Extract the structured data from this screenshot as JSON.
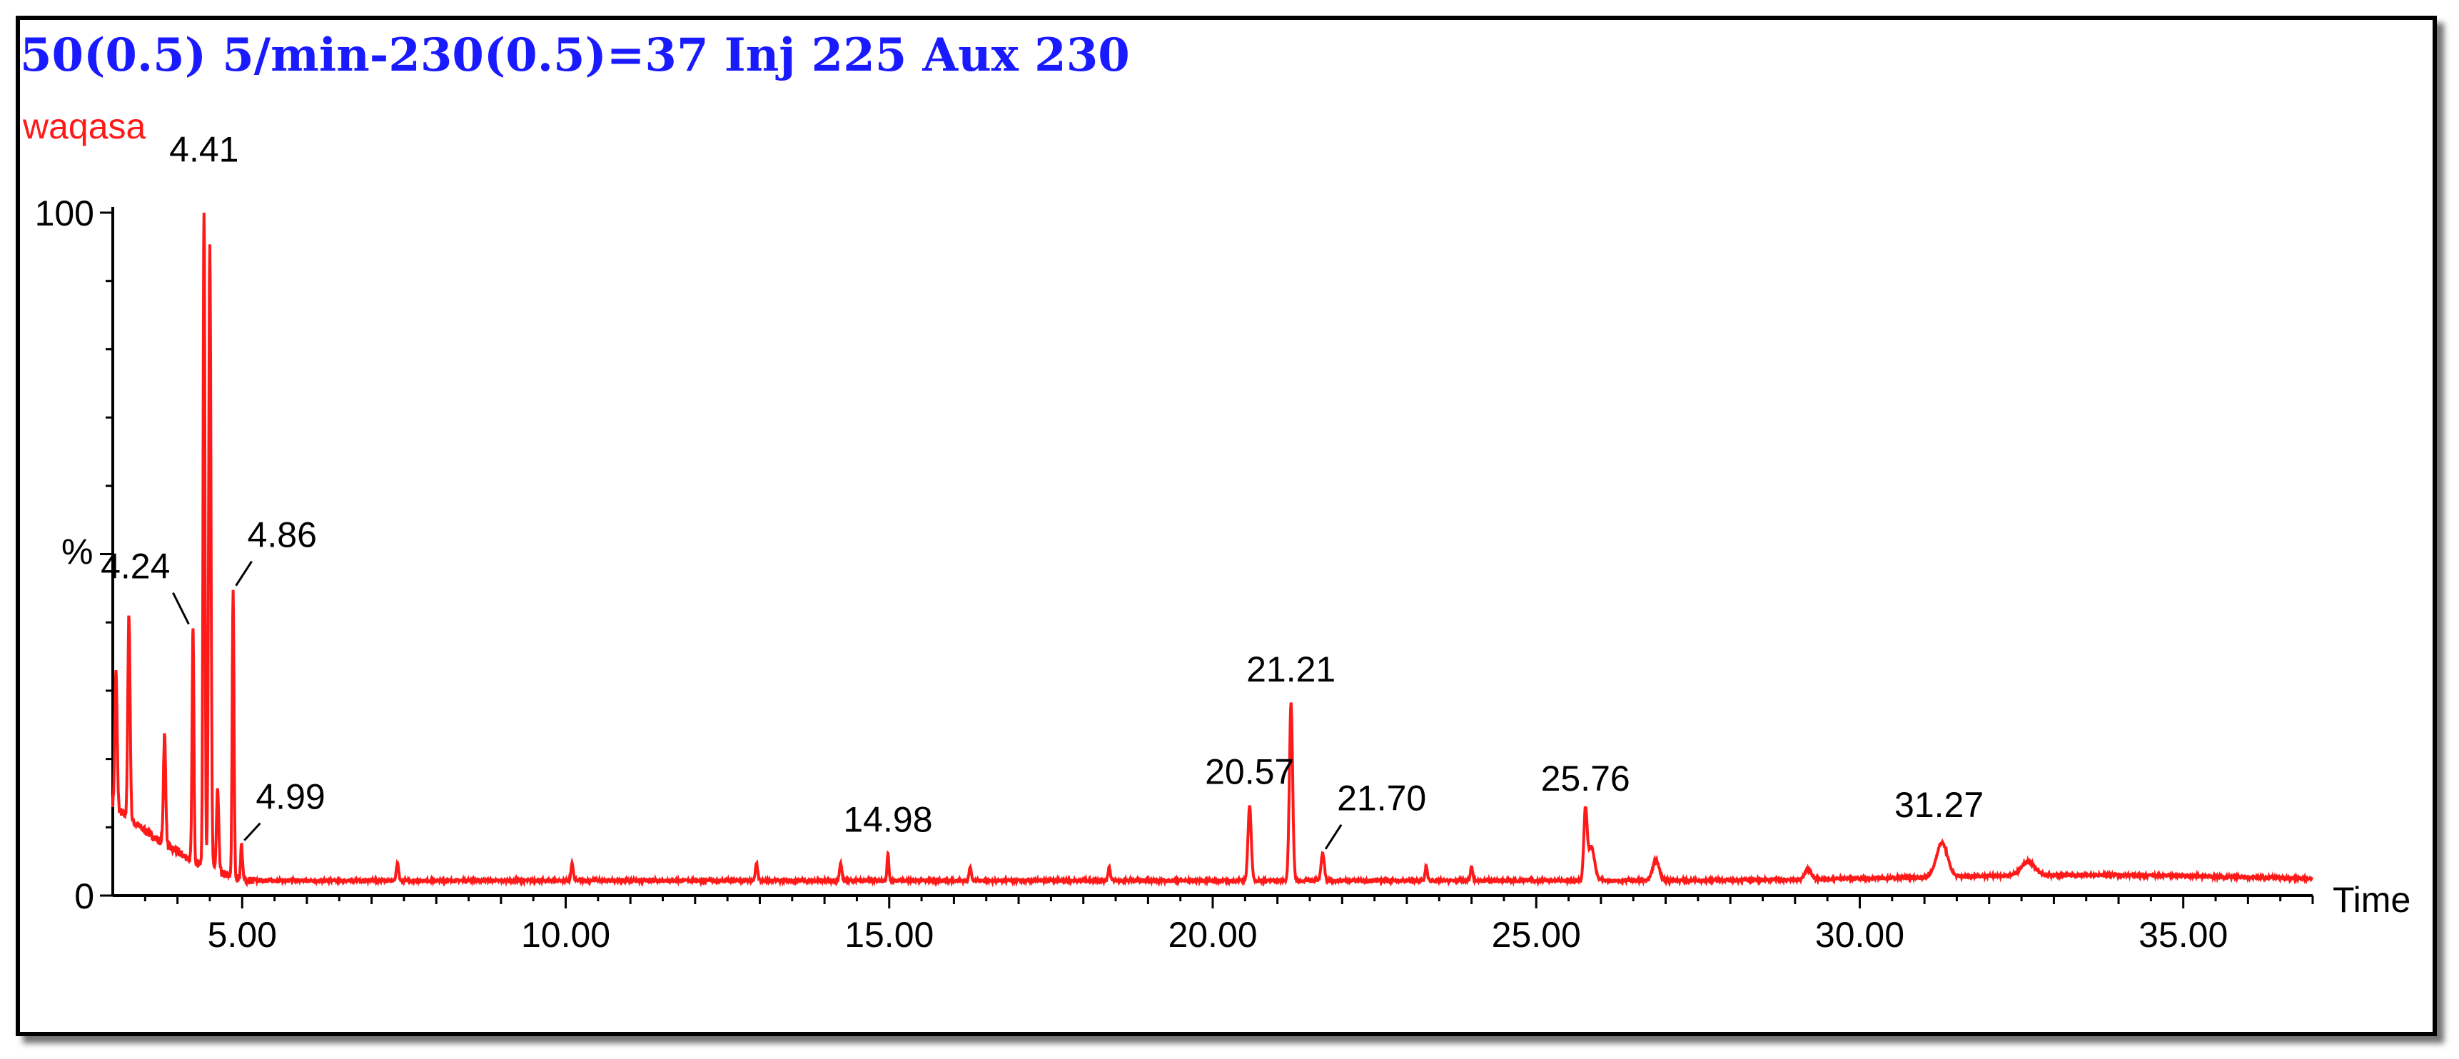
{
  "header": {
    "title": "50(0.5) 5/min-230(0.5)=37 Inj 225 Aux 230",
    "sample": "waqasa"
  },
  "colors": {
    "title": "#1a1aff",
    "trace": "#ff1a1a",
    "axis": "#000000"
  },
  "chart_data": {
    "type": "line",
    "title": "50(0.5) 5/min-230(0.5)=37 Inj 225 Aux 230",
    "series": [
      {
        "name": "waqasa"
      }
    ],
    "xlabel": "Time",
    "ylabel": "%",
    "xlim": [
      3.0,
      37.0
    ],
    "ylim": [
      0,
      100
    ],
    "x_ticks": [
      "5.00",
      "10.00",
      "15.00",
      "20.00",
      "25.00",
      "30.00",
      "35.00"
    ],
    "y_ticks": [
      "0",
      "100"
    ],
    "peaks": [
      {
        "rt": 4.24,
        "label": "4.24",
        "height": 34
      },
      {
        "rt": 4.41,
        "label": "4.41",
        "height": 100
      },
      {
        "rt": 4.86,
        "label": "4.86",
        "height": 42
      },
      {
        "rt": 4.99,
        "label": "4.99",
        "height": 5
      },
      {
        "rt": 14.98,
        "label": "14.98",
        "height": 4
      },
      {
        "rt": 20.57,
        "label": "20.57",
        "height": 11
      },
      {
        "rt": 21.21,
        "label": "21.21",
        "height": 26
      },
      {
        "rt": 21.7,
        "label": "21.70",
        "height": 4
      },
      {
        "rt": 25.76,
        "label": "25.76",
        "height": 10
      },
      {
        "rt": 31.27,
        "label": "31.27",
        "height": 5
      }
    ],
    "minor_peaks": [
      {
        "rt": 3.05,
        "height": 20
      },
      {
        "rt": 3.25,
        "height": 30
      },
      {
        "rt": 3.8,
        "height": 16
      },
      {
        "rt": 4.5,
        "height": 92
      },
      {
        "rt": 4.62,
        "height": 12
      },
      {
        "rt": 7.4,
        "height": 2.5
      },
      {
        "rt": 10.1,
        "height": 2.5
      },
      {
        "rt": 12.95,
        "height": 2.5
      },
      {
        "rt": 14.25,
        "height": 2.5
      },
      {
        "rt": 16.25,
        "height": 2
      },
      {
        "rt": 18.4,
        "height": 2
      },
      {
        "rt": 23.3,
        "height": 2
      },
      {
        "rt": 24.0,
        "height": 2
      },
      {
        "rt": 25.85,
        "height": 5
      },
      {
        "rt": 26.85,
        "height": 3
      },
      {
        "rt": 29.2,
        "height": 1.5
      },
      {
        "rt": 32.6,
        "height": 2
      }
    ]
  }
}
